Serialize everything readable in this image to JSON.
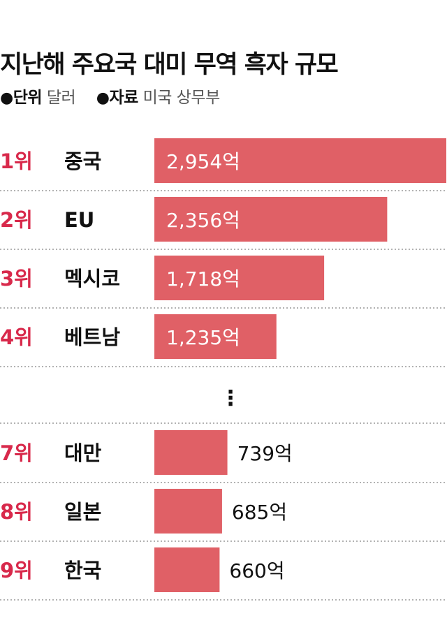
{
  "title": "지난해 주요국 대미 무역 흑자 규모",
  "meta": {
    "bullet": "●",
    "unit_label": "단위",
    "unit_value": "달러",
    "source_label": "자료",
    "source_value": "미국 상무부"
  },
  "ellipsis": "⋮",
  "colors": {
    "bar": "#e06066",
    "rank": "#d8294b",
    "divider": "#999999",
    "text": "#111111"
  },
  "chart_data": {
    "type": "bar",
    "orientation": "horizontal",
    "title": "지난해 주요국 대미 무역 흑자 규모",
    "unit": "달러",
    "value_suffix": "억",
    "rows": [
      {
        "rank": "1위",
        "name": "중국",
        "value": 2954,
        "label": "2,954억"
      },
      {
        "rank": "2위",
        "name": "EU",
        "value": 2356,
        "label": "2,356억"
      },
      {
        "rank": "3위",
        "name": "멕시코",
        "value": 1718,
        "label": "1,718억"
      },
      {
        "rank": "4위",
        "name": "베트남",
        "value": 1235,
        "label": "1,235억"
      },
      {
        "rank": "7위",
        "name": "대만",
        "value": 739,
        "label": "739억"
      },
      {
        "rank": "8위",
        "name": "일본",
        "value": 685,
        "label": "685억"
      },
      {
        "rank": "9위",
        "name": "한국",
        "value": 660,
        "label": "660억"
      }
    ],
    "gap_after_index": 3
  }
}
